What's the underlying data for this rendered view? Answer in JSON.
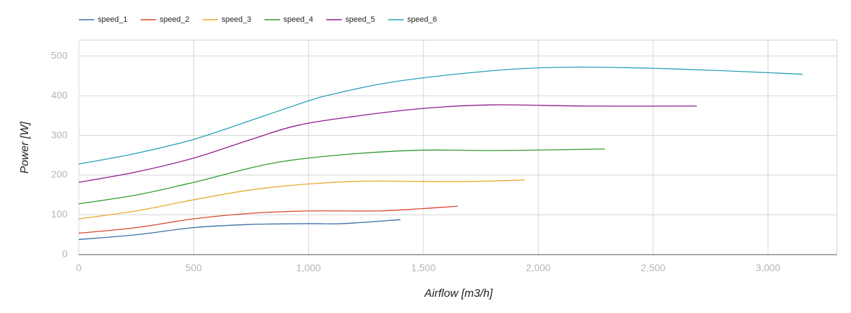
{
  "chart_data": {
    "type": "line",
    "x_label": "Airflow [m3/h]",
    "y_label": "Power [W]",
    "xlim": [
      0,
      3300
    ],
    "ylim": [
      0,
      540
    ],
    "xticks": [
      0,
      500,
      {
        "value": 1000,
        "label": "1,000"
      },
      {
        "value": 1500,
        "label": "1,500"
      },
      {
        "value": 2000,
        "label": "2,000"
      },
      {
        "value": 2500,
        "label": "2,500"
      },
      {
        "value": 3000,
        "label": "3,000"
      }
    ],
    "yticks": [
      0,
      100,
      200,
      300,
      400,
      500
    ],
    "grid": true,
    "legend": "top-left",
    "series": [
      {
        "name": "speed_1",
        "color": "#3a6ea5",
        "x": [
          0,
          250,
          500,
          750,
          1000,
          1150,
          1400
        ],
        "values": [
          38,
          50,
          68,
          76,
          78,
          78,
          88
        ]
      },
      {
        "name": "speed_2",
        "color": "#d9472b",
        "x": [
          0,
          250,
          500,
          750,
          1000,
          1300,
          1500,
          1650
        ],
        "values": [
          54,
          68,
          90,
          104,
          110,
          110,
          116,
          122
        ]
      },
      {
        "name": "speed_3",
        "color": "#e8a92a",
        "x": [
          0,
          250,
          500,
          750,
          1000,
          1250,
          1500,
          1700,
          1940
        ],
        "values": [
          90,
          110,
          138,
          163,
          178,
          185,
          184,
          184,
          188
        ]
      },
      {
        "name": "speed_4",
        "color": "#2e9a2e",
        "x": [
          0,
          250,
          500,
          800,
          1000,
          1250,
          1500,
          1800,
          2100,
          2290
        ],
        "values": [
          128,
          150,
          182,
          225,
          243,
          256,
          263,
          262,
          264,
          266
        ]
      },
      {
        "name": "speed_5",
        "color": "#8e1a8e",
        "x": [
          0,
          250,
          500,
          750,
          950,
          1200,
          1500,
          1800,
          2200,
          2690
        ],
        "values": [
          182,
          208,
          243,
          290,
          325,
          348,
          368,
          377,
          374,
          374
        ]
      },
      {
        "name": "speed_6",
        "color": "#25a0b8",
        "x": [
          0,
          250,
          500,
          750,
          1000,
          1100,
          1300,
          1500,
          1800,
          2000,
          2200,
          2500,
          2800,
          3150
        ],
        "values": [
          228,
          255,
          290,
          338,
          387,
          403,
          428,
          445,
          463,
          470,
          472,
          469,
          463,
          454
        ]
      }
    ]
  }
}
